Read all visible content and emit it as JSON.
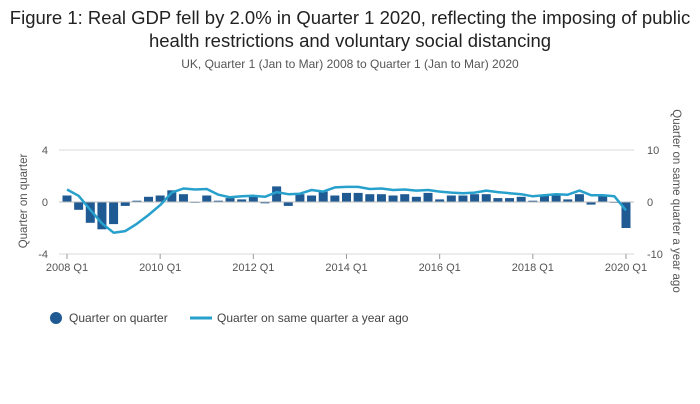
{
  "title": "Figure 1: Real GDP fell by 2.0% in Quarter 1 2020, reflecting the imposing of public health restrictions and voluntary social distancing",
  "subtitle": "UK, Quarter 1 (Jan to Mar) 2008 to Quarter 1 (Jan to Mar) 2020",
  "colors": {
    "bar": "#1f5a93",
    "line": "#27a0cc",
    "grid": "#d9d9d9",
    "zero": "#bbbbbb"
  },
  "chart_data": {
    "type": "bar+line",
    "title": "Figure 1: Real GDP fell by 2.0% in Quarter 1 2020, reflecting the imposing of public health restrictions and voluntary social distancing",
    "subtitle": "UK, Quarter 1 (Jan to Mar) 2008 to Quarter 1 (Jan to Mar) 2020",
    "y_left_label": "Quarter on quarter",
    "y_right_label": "Quarter on same quarter a year ago",
    "y_left_range": [
      -4,
      4
    ],
    "y_right_range": [
      -10,
      10
    ],
    "y_left_ticks": [
      4,
      0,
      -4
    ],
    "y_right_ticks": [
      10,
      0,
      -10
    ],
    "x_tick_labels": [
      "2008 Q1",
      "2010 Q1",
      "2012 Q1",
      "2014 Q1",
      "2016 Q1",
      "2018 Q1",
      "2020 Q1"
    ],
    "x_tick_indices": [
      0,
      8,
      16,
      24,
      32,
      40,
      48
    ],
    "quarters": [
      "2008 Q1",
      "2008 Q2",
      "2008 Q3",
      "2008 Q4",
      "2009 Q1",
      "2009 Q2",
      "2009 Q3",
      "2009 Q4",
      "2010 Q1",
      "2010 Q2",
      "2010 Q3",
      "2010 Q4",
      "2011 Q1",
      "2011 Q2",
      "2011 Q3",
      "2011 Q4",
      "2012 Q1",
      "2012 Q2",
      "2012 Q3",
      "2012 Q4",
      "2013 Q1",
      "2013 Q2",
      "2013 Q3",
      "2013 Q4",
      "2014 Q1",
      "2014 Q2",
      "2014 Q3",
      "2014 Q4",
      "2015 Q1",
      "2015 Q2",
      "2015 Q3",
      "2015 Q4",
      "2016 Q1",
      "2016 Q2",
      "2016 Q3",
      "2016 Q4",
      "2017 Q1",
      "2017 Q2",
      "2017 Q3",
      "2017 Q4",
      "2018 Q1",
      "2018 Q2",
      "2018 Q3",
      "2018 Q4",
      "2019 Q1",
      "2019 Q2",
      "2019 Q3",
      "2019 Q4",
      "2020 Q1"
    ],
    "series": [
      {
        "name": "Quarter on quarter",
        "type": "bar",
        "axis": "left",
        "values": [
          0.5,
          -0.6,
          -1.6,
          -2.1,
          -1.7,
          -0.3,
          0.1,
          0.4,
          0.5,
          0.9,
          0.6,
          0.0,
          0.5,
          0.1,
          0.3,
          0.2,
          0.5,
          -0.1,
          1.2,
          -0.3,
          0.6,
          0.5,
          0.8,
          0.5,
          0.7,
          0.7,
          0.6,
          0.6,
          0.5,
          0.6,
          0.4,
          0.7,
          0.2,
          0.5,
          0.5,
          0.6,
          0.6,
          0.3,
          0.3,
          0.4,
          0.1,
          0.5,
          0.6,
          0.2,
          0.6,
          -0.2,
          0.5,
          0.0,
          -2.0
        ]
      },
      {
        "name": "Quarter on same quarter a year ago",
        "type": "line",
        "axis": "right",
        "values": [
          2.4,
          1.2,
          -1.5,
          -4.1,
          -5.9,
          -5.6,
          -4.2,
          -2.5,
          -0.6,
          1.8,
          2.6,
          2.4,
          2.5,
          1.4,
          0.9,
          1.1,
          1.2,
          1.0,
          1.9,
          1.5,
          1.6,
          2.3,
          2.0,
          2.8,
          2.9,
          2.9,
          2.5,
          2.6,
          2.3,
          2.4,
          2.2,
          2.3,
          2.0,
          1.8,
          1.7,
          1.8,
          2.2,
          1.9,
          1.7,
          1.5,
          1.1,
          1.3,
          1.5,
          1.4,
          2.2,
          1.3,
          1.3,
          1.1,
          -1.6
        ]
      }
    ],
    "legend": [
      "Quarter on quarter",
      "Quarter on same quarter a year ago"
    ]
  }
}
